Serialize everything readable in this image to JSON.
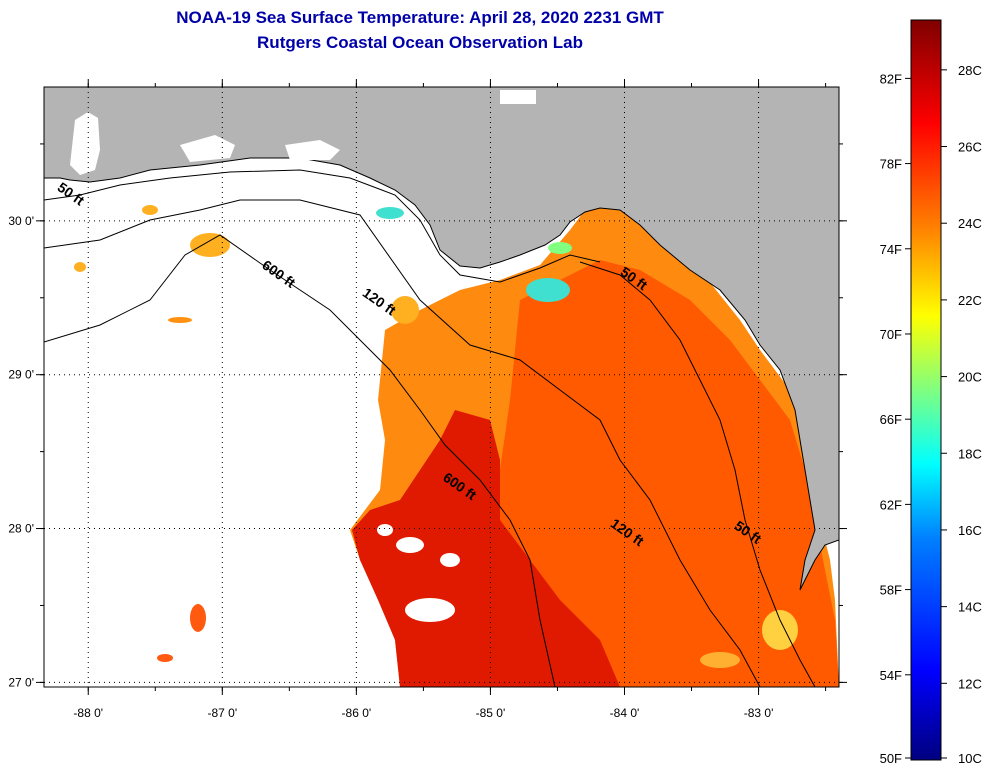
{
  "header": {
    "title": "NOAA-19 Sea Surface Temperature:  April 28, 2020 2231 GMT",
    "subtitle": "Rutgers Coastal Ocean Observation Lab"
  },
  "map": {
    "lon_range": [
      -88.33,
      -82.4
    ],
    "lat_range": [
      26.97,
      30.87
    ],
    "lon_ticks": [
      "-88 0'",
      "-87 0'",
      "-86 0'",
      "-85 0'",
      "-84 0'",
      "-83 0'"
    ],
    "lon_tick_values": [
      -88,
      -87,
      -86,
      -85,
      -84,
      -83
    ],
    "lat_ticks": [
      "27 0'",
      "28 0'",
      "29 0'",
      "30 0'"
    ],
    "lat_tick_values": [
      27,
      28,
      29,
      30
    ],
    "contour_labels": [
      {
        "text": "50 ft",
        "lon": -88.15,
        "lat": 30.15
      },
      {
        "text": "600 ft",
        "lon": -86.6,
        "lat": 29.63
      },
      {
        "text": "120 ft",
        "lon": -85.85,
        "lat": 29.45
      },
      {
        "text": "50 ft",
        "lon": -83.95,
        "lat": 29.6
      },
      {
        "text": "600 ft",
        "lon": -85.25,
        "lat": 28.25
      },
      {
        "text": "120 ft",
        "lon": -84.0,
        "lat": 27.95
      },
      {
        "text": "50 ft",
        "lon": -83.1,
        "lat": 27.95
      }
    ],
    "colors": {
      "land": "#b4b4b4",
      "no_data": "#ffffff",
      "coastline": "#000000"
    }
  },
  "colorbar": {
    "f_labels": [
      "82F",
      "78F",
      "74F",
      "70F",
      "66F",
      "62F",
      "58F",
      "54F",
      "50F"
    ],
    "c_labels": [
      "28C",
      "26C",
      "24C",
      "22C",
      "20C",
      "18C",
      "16C",
      "14C",
      "12C",
      "10C"
    ],
    "range_c": [
      10,
      29.3
    ],
    "colors": [
      "#00007f",
      "#0000ff",
      "#0080ff",
      "#00ffff",
      "#80ff80",
      "#ffff00",
      "#ff8000",
      "#ff0000",
      "#7f0000"
    ]
  }
}
